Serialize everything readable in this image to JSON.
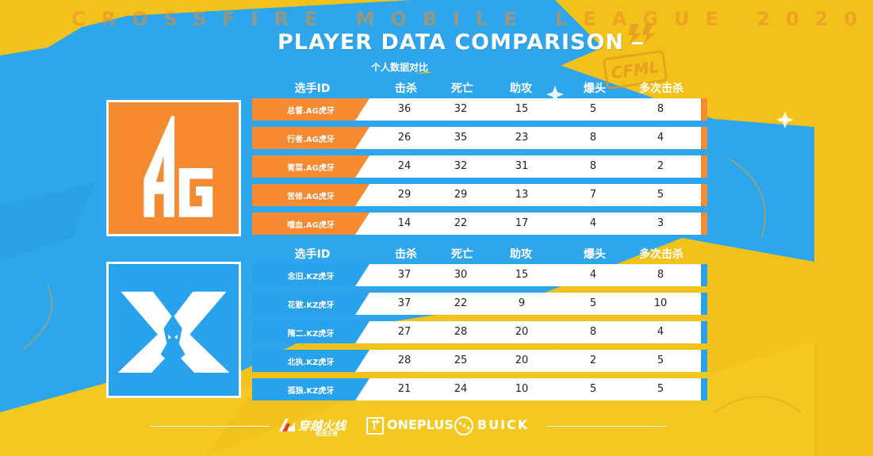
{
  "header": {
    "league_watermark": "CROSSFIRE MOBILE LEAGUE 2020",
    "title": "PLAYER DATA COMPARISON",
    "subtitle": "个人数据对比",
    "cfml_badge": "CFML"
  },
  "columns": {
    "player_id": "选手ID",
    "kills": "击杀",
    "deaths": "死亡",
    "assists": "助攻",
    "headshots": "爆头",
    "multi_kills": "多次击杀"
  },
  "teams": [
    {
      "key": "ag",
      "logo": "ag-team-logo-icon",
      "color": "#f68a30",
      "players": [
        {
          "name": "总督.AG虎牙",
          "kills": "36",
          "deaths": "32",
          "assists": "15",
          "headshots": "5",
          "multi_kills": "8"
        },
        {
          "name": "行者.AG虎牙",
          "kills": "26",
          "deaths": "35",
          "assists": "23",
          "headshots": "8",
          "multi_kills": "4"
        },
        {
          "name": "青菜.AG虎牙",
          "kills": "24",
          "deaths": "32",
          "assists": "31",
          "headshots": "8",
          "multi_kills": "2"
        },
        {
          "name": "苦修.AG虎牙",
          "kills": "29",
          "deaths": "29",
          "assists": "13",
          "headshots": "7",
          "multi_kills": "5"
        },
        {
          "name": "嗜血.AG虎牙",
          "kills": "14",
          "deaths": "22",
          "assists": "17",
          "headshots": "4",
          "multi_kills": "3"
        }
      ]
    },
    {
      "key": "kz",
      "logo": "kz-team-logo-icon",
      "color": "#29a2ee",
      "players": [
        {
          "name": "念旧.KZ虎牙",
          "kills": "37",
          "deaths": "30",
          "assists": "15",
          "headshots": "4",
          "multi_kills": "8"
        },
        {
          "name": "花散.KZ虎牙",
          "kills": "37",
          "deaths": "22",
          "assists": "9",
          "headshots": "5",
          "multi_kills": "10"
        },
        {
          "name": "隋二.KZ虎牙",
          "kills": "27",
          "deaths": "28",
          "assists": "20",
          "headshots": "8",
          "multi_kills": "4"
        },
        {
          "name": "北执.KZ虎牙",
          "kills": "28",
          "deaths": "25",
          "assists": "20",
          "headshots": "2",
          "multi_kills": "5"
        },
        {
          "name": "孤狼.KZ虎牙",
          "kills": "21",
          "deaths": "24",
          "assists": "10",
          "headshots": "5",
          "multi_kills": "5"
        }
      ]
    }
  ],
  "footer": {
    "sponsors": [
      "穿越火线",
      "ONEPLUS",
      "BUICK"
    ],
    "sponsor_sub": "枪战王者"
  },
  "colors": {
    "background_yellow": "#f2c21a",
    "background_blue": "#29a2ee",
    "ag_orange": "#f68a30",
    "kz_blue": "#29a2ee"
  }
}
